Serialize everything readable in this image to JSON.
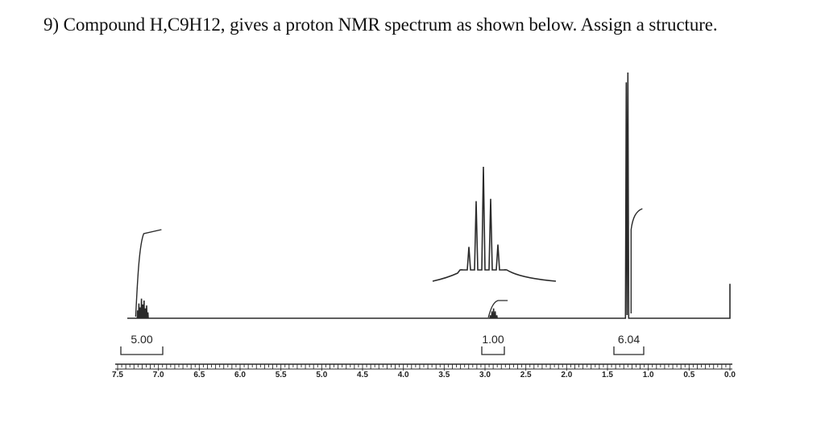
{
  "question": "9) Compound H,C9H12, gives a proton NMR spectrum as shown below. Assign a structure.",
  "colors": {
    "ink": "#2a2a2a",
    "paper": "#ffffff"
  },
  "chart_data": {
    "type": "line",
    "title": "1H NMR spectrum of Compound H (C9H12)",
    "xlabel": "",
    "ylabel": "",
    "xlim": [
      7.5,
      0.0
    ],
    "x_reversed": true,
    "ticks": [
      "7.5",
      "7.0",
      "6.5",
      "6.0",
      "5.5",
      "5.0",
      "4.5",
      "4.0",
      "3.5",
      "3.0",
      "2.5",
      "2.0",
      "1.5",
      "1.0",
      "0.5",
      "0.0"
    ],
    "peaks": [
      {
        "shift": 7.2,
        "multiplicity": "multiplet",
        "relative_height": 0.08,
        "integration": "5.00"
      },
      {
        "shift": 2.9,
        "multiplicity": "septet",
        "relative_height": 0.04,
        "integration": "1.00"
      },
      {
        "shift": 1.25,
        "multiplicity": "doublet",
        "relative_height": 1.0,
        "integration": "6.04"
      },
      {
        "shift": 0.0,
        "multiplicity": "singlet (TMS)",
        "relative_height": 0.14,
        "integration": ""
      }
    ],
    "inset": {
      "description": "expansion of septet at 2.9 ppm",
      "line_heights": [
        0.1,
        0.3,
        0.7,
        1.0,
        0.72,
        0.32,
        0.1
      ]
    },
    "integrations": [
      "5.00",
      "1.00",
      "6.04"
    ]
  }
}
